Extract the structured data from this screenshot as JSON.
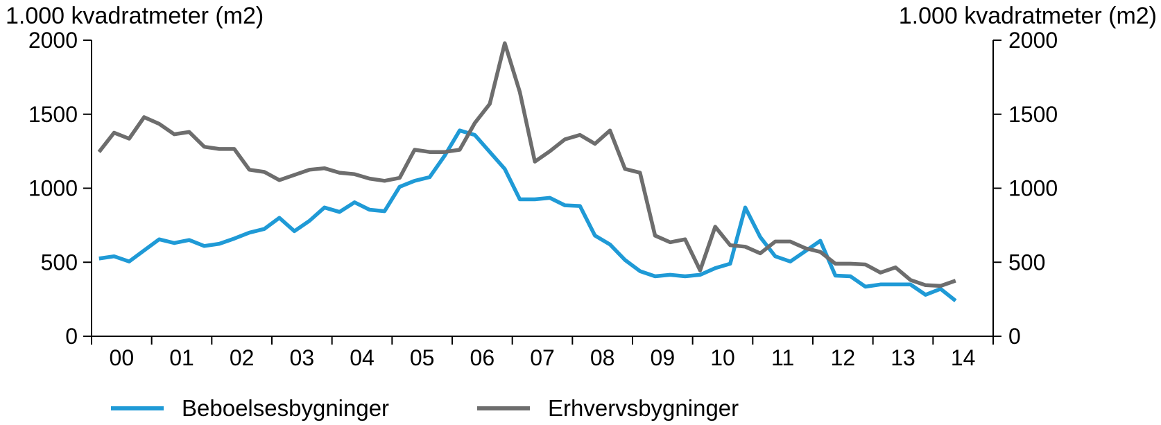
{
  "axis_unit_left": "1.000 kvadratmeter (m2)",
  "axis_unit_right": "1.000 kvadratmeter (m2)",
  "chart_data": {
    "type": "line",
    "title": "",
    "xlabel": "",
    "ylabel": "1.000 kvadratmeter (m2)",
    "ylabel_right": "1.000 kvadratmeter (m2)",
    "ylim": [
      0,
      2000
    ],
    "yticks": [
      0,
      500,
      1000,
      1500,
      2000
    ],
    "year_ticks": [
      "00",
      "01",
      "02",
      "03",
      "04",
      "05",
      "06",
      "07",
      "08",
      "09",
      "10",
      "11",
      "12",
      "13",
      "14"
    ],
    "x_unit": "quarter index starting at 2000 Q1",
    "grid": false,
    "legend_position": "bottom",
    "series": [
      {
        "name": "Beboelsesbygninger",
        "color": "#1f9ad6",
        "values": [
          525,
          540,
          505,
          580,
          655,
          630,
          650,
          610,
          625,
          660,
          700,
          725,
          800,
          710,
          780,
          870,
          840,
          905,
          855,
          845,
          1010,
          1050,
          1075,
          1220,
          1390,
          1360,
          1245,
          1130,
          925,
          925,
          935,
          885,
          880,
          680,
          620,
          515,
          440,
          405,
          415,
          405,
          415,
          460,
          490,
          870,
          670,
          540,
          505,
          575,
          645,
          410,
          405,
          335,
          350,
          350,
          350,
          280,
          320,
          240
        ]
      },
      {
        "name": "Erhvervsbygninger",
        "color": "#6d6d6d",
        "values": [
          1245,
          1375,
          1335,
          1480,
          1435,
          1365,
          1380,
          1280,
          1265,
          1265,
          1125,
          1110,
          1055,
          1090,
          1125,
          1135,
          1105,
          1095,
          1065,
          1050,
          1070,
          1260,
          1245,
          1245,
          1260,
          1440,
          1570,
          1980,
          1650,
          1180,
          1250,
          1330,
          1360,
          1300,
          1390,
          1130,
          1105,
          680,
          635,
          655,
          445,
          740,
          615,
          605,
          560,
          640,
          640,
          595,
          570,
          490,
          490,
          485,
          430,
          465,
          380,
          345,
          340,
          375
        ]
      }
    ]
  }
}
